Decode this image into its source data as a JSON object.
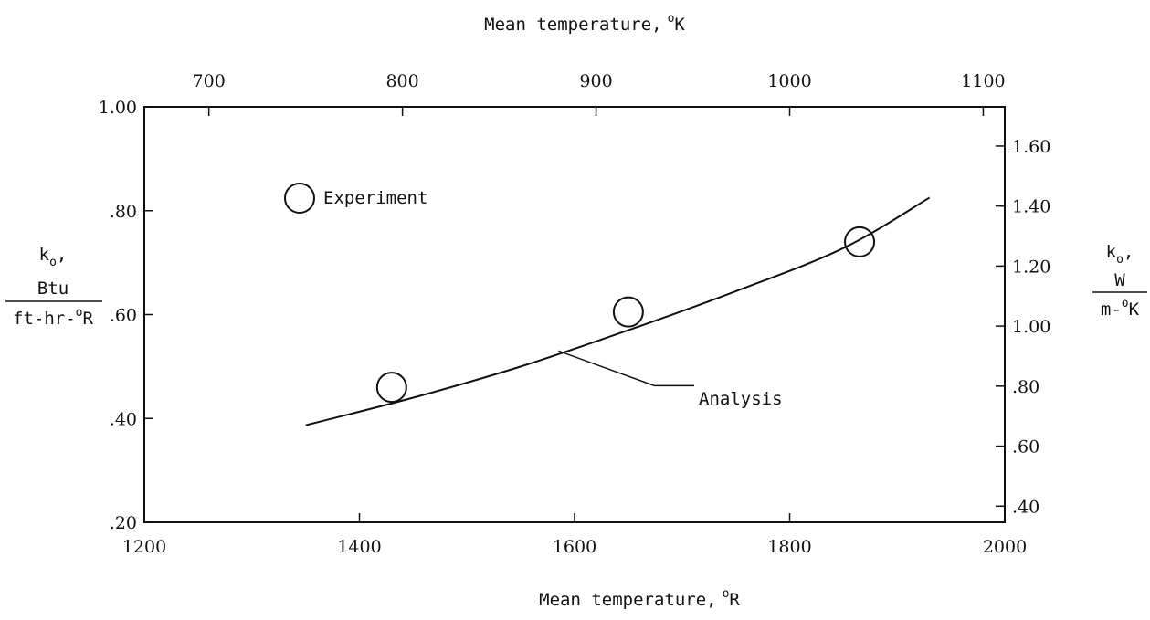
{
  "chart_data": {
    "type": "scatter",
    "x_axis": {
      "label": "Mean temperature,",
      "unit_superscript": "o",
      "unit": "R",
      "range": [
        1200,
        2000
      ],
      "ticks": [
        "1200",
        "1400",
        "1600",
        "1800",
        "2000"
      ]
    },
    "x2_axis": {
      "label": "Mean temperature,",
      "unit_superscript": "o",
      "unit": "K",
      "ticks": [
        "700",
        "800",
        "900",
        "1000",
        "1100"
      ]
    },
    "y_axis": {
      "symbol": "k",
      "symbol_subscript": "o",
      "numerator": "Btu",
      "denominator": "ft-hr-",
      "denominator_superscript": "o",
      "denominator_unit": "R",
      "range": [
        0.2,
        1.0
      ],
      "ticks": [
        "1.00",
        ".80",
        ".60",
        ".40",
        ".20"
      ]
    },
    "y2_axis": {
      "symbol": "k",
      "symbol_subscript": "o",
      "numerator": "W",
      "denominator": "m-",
      "denominator_superscript": "o",
      "denominator_unit": "K",
      "ticks": [
        "1.60",
        "1.40",
        "1.20",
        "1.00",
        ".80",
        ".60",
        ".40"
      ]
    },
    "series": [
      {
        "name": "Experiment",
        "kind": "points",
        "marker": "open-circle",
        "points": [
          {
            "x": 1430,
            "y": 0.46
          },
          {
            "x": 1650,
            "y": 0.605
          },
          {
            "x": 1865,
            "y": 0.74
          }
        ]
      },
      {
        "name": "Analysis",
        "kind": "line",
        "points": [
          {
            "x": 1350,
            "y": 0.387
          },
          {
            "x": 1450,
            "y": 0.44
          },
          {
            "x": 1550,
            "y": 0.5
          },
          {
            "x": 1650,
            "y": 0.57
          },
          {
            "x": 1750,
            "y": 0.645
          },
          {
            "x": 1850,
            "y": 0.728
          },
          {
            "x": 1930,
            "y": 0.825
          }
        ]
      }
    ],
    "legend": {
      "label": "Experiment",
      "marker": "open-circle",
      "placement": "upper-left"
    },
    "annotation": {
      "text": "Analysis",
      "leader_to": {
        "x": 1585,
        "y": 0.53
      }
    },
    "grid": false
  }
}
